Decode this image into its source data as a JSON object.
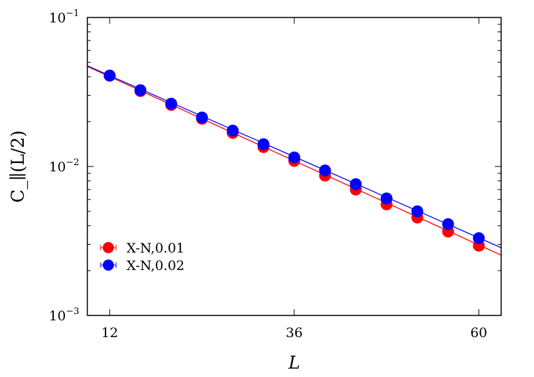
{
  "chart_data": {
    "type": "scatter",
    "title": "",
    "xlabel": "L",
    "ylabel": "C_∥(L/2)",
    "ylabel_main": "C",
    "ylabel_sub": "∥",
    "ylabel_tail": "(L/2)",
    "xscale": "linear",
    "yscale": "log",
    "xlim": [
      9.1,
      62.9
    ],
    "ylim": [
      0.001,
      0.1
    ],
    "x_ticks": [
      12,
      36,
      60
    ],
    "x_tick_labels": [
      "12",
      "36",
      "60"
    ],
    "y_ticks": [
      0.1,
      0.01,
      0.001
    ],
    "y_tick_labels": [
      {
        "base": "10",
        "exp": "−1"
      },
      {
        "base": "10",
        "exp": "−2"
      },
      {
        "base": "10",
        "exp": "−3"
      }
    ],
    "grid": false,
    "legend_position": "bottom-left",
    "series": [
      {
        "name": "X-N,0.01",
        "color": "#ff0000",
        "x": [
          12,
          16,
          20,
          24,
          28,
          32,
          36,
          40,
          44,
          48,
          52,
          56,
          60
        ],
        "y": [
          0.0407,
          0.0321,
          0.0259,
          0.0209,
          0.0168,
          0.0135,
          0.0109,
          0.00869,
          0.007,
          0.00557,
          0.00454,
          0.00366,
          0.00294
        ],
        "fit": {
          "x": [
            9.1,
            62.9
          ],
          "y": [
            0.0469,
            0.00254
          ]
        }
      },
      {
        "name": "X-N,0.02",
        "color": "#0000ff",
        "x": [
          12,
          16,
          20,
          24,
          28,
          32,
          36,
          40,
          44,
          48,
          52,
          56,
          60
        ],
        "y": [
          0.0407,
          0.0325,
          0.0264,
          0.0213,
          0.0174,
          0.0141,
          0.0115,
          0.0094,
          0.0076,
          0.0061,
          0.005,
          0.0041,
          0.0033
        ],
        "fit": {
          "x": [
            9.1,
            62.9
          ],
          "y": [
            0.0474,
            0.00285
          ]
        }
      }
    ]
  }
}
